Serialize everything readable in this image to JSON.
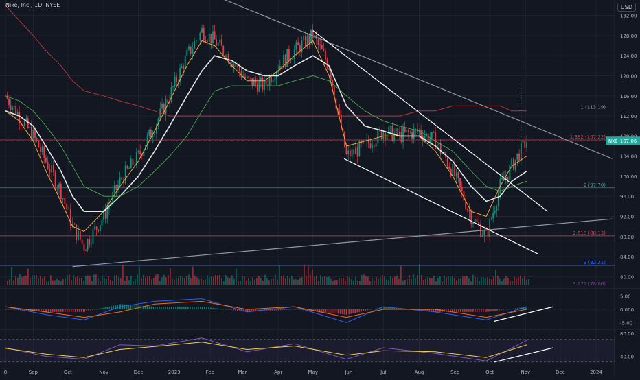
{
  "header": {
    "symbol_line": "Nike, Inc., 1D, NYSE",
    "currency": "USD"
  },
  "colors": {
    "background": "#131722",
    "grid": "#1f2330",
    "axis_text": "#b2b5be",
    "candle_up": "#089981",
    "candle_down": "#f23645",
    "ma_fast": "#f2a93b",
    "ma_mid": "#e6e6e6",
    "ma_green": "#4caf50",
    "ma_red": "#b2383b",
    "trendline": "#ffffff",
    "trendline_gray": "#9598a1",
    "macd_line": "#2962ff",
    "signal_line": "#ff6d00",
    "rsi_line": "#7e57c2",
    "rsi_ma": "#f2d53c",
    "current_price_tag": "#26a69a"
  },
  "chart_data": [
    {
      "type": "candlestick",
      "title": "Nike, Inc., 1D, NYSE",
      "x_tick_labels": [
        "8",
        "Sep",
        "Oct",
        "Nov",
        "Dec",
        "2023",
        "Feb",
        "Mar",
        "Apr",
        "May",
        "Jun",
        "Jul",
        "Aug",
        "Sep",
        "Oct",
        "Nov",
        "Dec",
        "2024"
      ],
      "y_tick_labels": [
        "132.00",
        "128.00",
        "124.00",
        "120.00",
        "116.00",
        "112.00",
        "108.00",
        "104.00",
        "100.00",
        "96.00",
        "92.00",
        "88.00",
        "84.00",
        "80.00"
      ],
      "ylim": [
        78,
        134
      ],
      "x": [
        "2022-08-08",
        "2022-08-20",
        "2022-09-01",
        "2022-09-12",
        "2022-09-25",
        "2022-10-05",
        "2022-10-15",
        "2022-11-01",
        "2022-11-15",
        "2022-12-01",
        "2022-12-15",
        "2022-12-28",
        "2023-01-12",
        "2023-01-25",
        "2023-02-05",
        "2023-02-20",
        "2023-03-05",
        "2023-03-20",
        "2023-04-01",
        "2023-04-15",
        "2023-05-01",
        "2023-05-15",
        "2023-05-30",
        "2023-06-15",
        "2023-07-01",
        "2023-07-15",
        "2023-08-01",
        "2023-08-15",
        "2023-08-30",
        "2023-09-15",
        "2023-09-28",
        "2023-10-10",
        "2023-10-20",
        "2023-11-02"
      ],
      "close": [
        116,
        112,
        108,
        103,
        97,
        90,
        86,
        92,
        99,
        104,
        110,
        116,
        124,
        129,
        127,
        123,
        119,
        118,
        122,
        125,
        128,
        122,
        104,
        106,
        109,
        108,
        109,
        107,
        101,
        92,
        88,
        98,
        102,
        107.06
      ],
      "current_price": {
        "label": "NKE",
        "value": "107.06"
      },
      "fib_levels": [
        {
          "label": "1 (113.19)",
          "value": 113.19,
          "color": "#9598a1"
        },
        {
          "label": "1.382 (107.22)",
          "value": 107.22,
          "color": "#f23645"
        },
        {
          "label": "2 (97.70)",
          "value": 97.7,
          "color": "#26a69a"
        },
        {
          "label": "2.618 (88.13)",
          "value": 88.13,
          "color": "#f23645"
        },
        {
          "label": "3 (82.21)",
          "value": 82.21,
          "color": "#2962ff"
        },
        {
          "label": "3.272 (78.00)",
          "value": 78.0,
          "color": "#9c27b0"
        }
      ],
      "series": [
        {
          "values": [
            113,
            111,
            107,
            101,
            95,
            90,
            89,
            93,
            98,
            103,
            109,
            115,
            122,
            127,
            126,
            122,
            119,
            119,
            121,
            124,
            127,
            120,
            106,
            107,
            108,
            108,
            108,
            105,
            100,
            93,
            92,
            98,
            102,
            104
          ]
        },
        {
          "values": [
            113,
            112,
            110,
            106,
            101,
            96,
            93,
            93,
            96,
            100,
            105,
            110,
            116,
            121,
            124,
            123,
            121,
            120,
            120,
            122,
            124,
            122,
            114,
            110,
            109,
            108,
            108,
            106,
            103,
            98,
            95,
            96,
            99,
            101
          ]
        },
        {
          "values": [
            116,
            115,
            113,
            110,
            106,
            102,
            98,
            96,
            96,
            98,
            101,
            104,
            108,
            113,
            117,
            118,
            118,
            118,
            118,
            119,
            120,
            119,
            116,
            113,
            111,
            110,
            109,
            107,
            105,
            101,
            98,
            97,
            98,
            99
          ]
        },
        {
          "values": [
            134,
            131,
            128,
            125,
            122,
            119,
            117,
            116,
            115,
            114,
            113,
            112,
            112,
            112,
            112,
            112,
            112,
            112,
            112,
            112,
            112,
            112,
            112,
            112,
            112,
            112,
            113,
            113,
            114,
            114,
            114,
            114,
            113,
            113
          ]
        }
      ]
    },
    {
      "type": "line",
      "panel": "macd",
      "y_tick_labels": [
        "5.00",
        "0.000",
        "-5.00"
      ],
      "ylim": [
        -7,
        7
      ],
      "x": [
        "2022-08-08",
        "2022-09-12",
        "2022-10-15",
        "2022-11-15",
        "2022-12-15",
        "2023-01-25",
        "2023-03-05",
        "2023-04-15",
        "2023-05-30",
        "2023-07-01",
        "2023-08-15",
        "2023-09-28",
        "2023-11-02"
      ],
      "series": [
        {
          "values": [
            1,
            -2,
            -4,
            1,
            3,
            4,
            -1,
            1,
            -5,
            1,
            -1,
            -4,
            1
          ]
        },
        {
          "values": [
            1,
            -1,
            -3,
            -1,
            2,
            3,
            0,
            1,
            -3,
            0,
            0,
            -3,
            0
          ]
        }
      ]
    },
    {
      "type": "line",
      "panel": "rsi",
      "y_tick_labels": [
        "80.00",
        "40.00"
      ],
      "ylim": [
        25,
        85
      ],
      "x": [
        "2022-08-08",
        "2022-09-12",
        "2022-10-15",
        "2022-11-15",
        "2022-12-15",
        "2023-01-25",
        "2023-03-05",
        "2023-04-15",
        "2023-05-30",
        "2023-07-01",
        "2023-08-15",
        "2023-09-28",
        "2023-11-02"
      ],
      "series": [
        {
          "values": [
            55,
            40,
            35,
            60,
            58,
            72,
            48,
            62,
            35,
            55,
            45,
            32,
            68
          ]
        },
        {
          "values": [
            54,
            44,
            38,
            52,
            57,
            65,
            52,
            58,
            42,
            50,
            48,
            38,
            60
          ]
        }
      ]
    }
  ]
}
